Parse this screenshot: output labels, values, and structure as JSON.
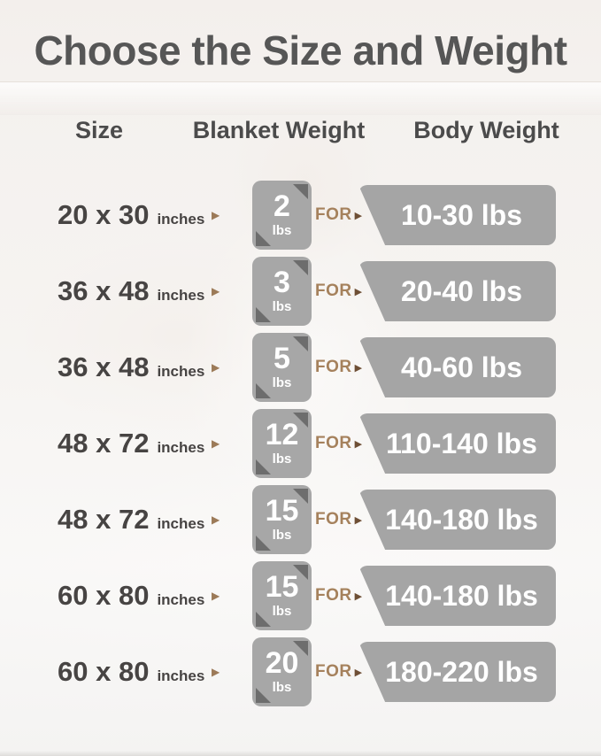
{
  "title": "Choose the Size and Weight",
  "headers": {
    "size": "Size",
    "blanket_weight": "Blanket Weight",
    "body_weight": "Body Weight"
  },
  "labels": {
    "for": "FOR",
    "inches": "inches",
    "lbs": "lbs"
  },
  "icons": {
    "right_arrow": "▶"
  },
  "colors": {
    "background": "#f3f0ed",
    "title_text": "#565656",
    "header_text": "#4b4b4b",
    "size_text": "#474443",
    "accent_tan": "#a5815c",
    "badge_gray": "#a7a7a7",
    "badge_corner_gray": "#6d6d6d",
    "badge_text": "#ffffff"
  },
  "rows": [
    {
      "size": "20 x 30",
      "weight": "2",
      "body": "10-30 lbs"
    },
    {
      "size": "36 x 48",
      "weight": "3",
      "body": "20-40 lbs"
    },
    {
      "size": "36 x 48",
      "weight": "5",
      "body": "40-60 lbs"
    },
    {
      "size": "48 x 72",
      "weight": "12",
      "body": "110-140 lbs"
    },
    {
      "size": "48 x 72",
      "weight": "15",
      "body": "140-180 lbs"
    },
    {
      "size": "60 x 80",
      "weight": "15",
      "body": "140-180 lbs"
    },
    {
      "size": "60 x 80",
      "weight": "20",
      "body": "180-220 lbs"
    }
  ],
  "chart_data": {
    "type": "table",
    "title": "Choose the Size and Weight",
    "columns": [
      "Size",
      "Blanket Weight",
      "Body Weight"
    ],
    "rows": [
      [
        "20 x 30 inches",
        "2 lbs",
        "10-30 lbs"
      ],
      [
        "36 x 48 inches",
        "3 lbs",
        "20-40 lbs"
      ],
      [
        "36 x 48 inches",
        "5 lbs",
        "40-60 lbs"
      ],
      [
        "48 x 72 inches",
        "12 lbs",
        "110-140 lbs"
      ],
      [
        "48 x 72 inches",
        "15 lbs",
        "140-180 lbs"
      ],
      [
        "60 x 80 inches",
        "15 lbs",
        "140-180 lbs"
      ],
      [
        "60 x 80 inches",
        "20 lbs",
        "180-220 lbs"
      ]
    ]
  }
}
